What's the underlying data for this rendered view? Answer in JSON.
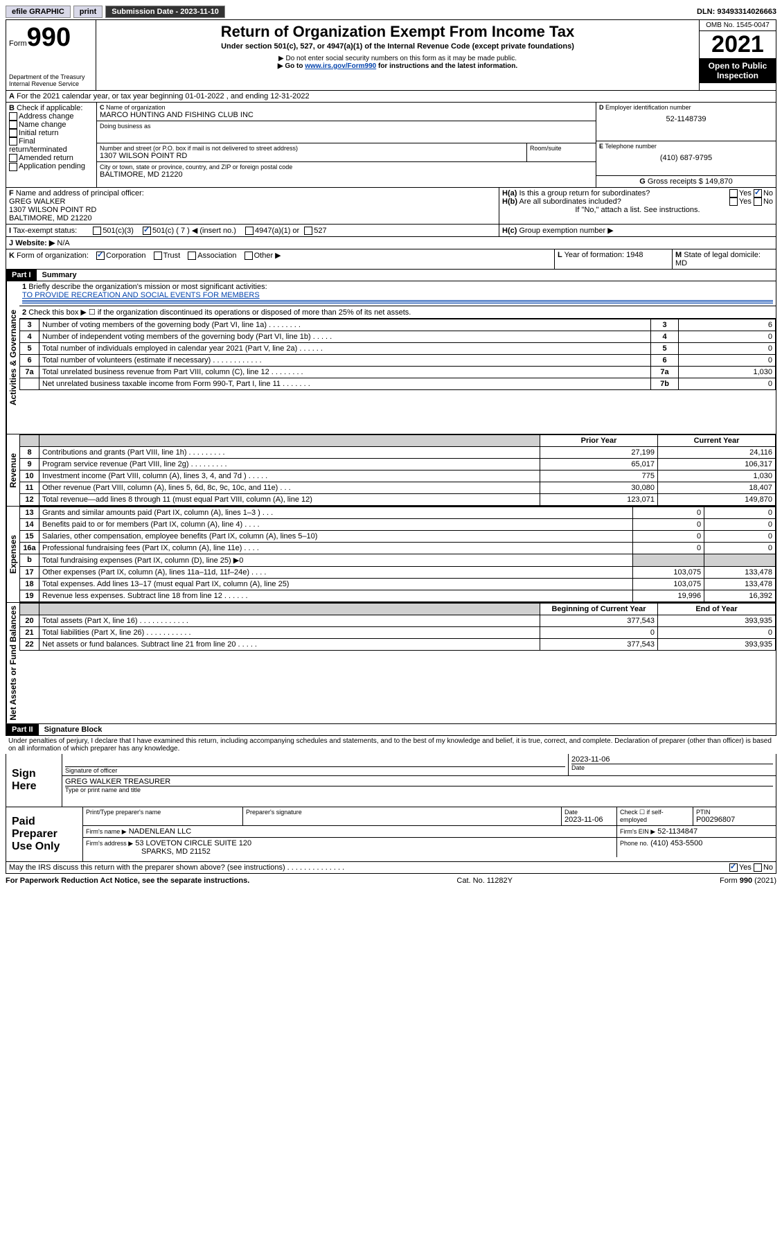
{
  "topbar": {
    "efile": "efile GRAPHIC",
    "print": "print",
    "sub_label": "Submission Date - 2023-11-10",
    "dln": "DLN: 93493314026663"
  },
  "header": {
    "form": "Form",
    "formno": "990",
    "dept": "Department of the Treasury",
    "irs": "Internal Revenue Service",
    "title": "Return of Organization Exempt From Income Tax",
    "subtitle": "Under section 501(c), 527, or 4947(a)(1) of the Internal Revenue Code (except private foundations)",
    "inst1": "▶ Do not enter social security numbers on this form as it may be made public.",
    "inst2_pre": "▶ Go to ",
    "inst2_link": "www.irs.gov/Form990",
    "inst2_post": " for instructions and the latest information.",
    "omb": "OMB No. 1545-0047",
    "year": "2021",
    "open": "Open to Public Inspection"
  },
  "A": {
    "line": "For the 2021 calendar year, or tax year beginning 01-01-2022   , and ending 12-31-2022"
  },
  "B": {
    "label": "Check if applicable:",
    "opts": [
      "Address change",
      "Name change",
      "Initial return",
      "Final return/terminated",
      "Amended return",
      "Application pending"
    ]
  },
  "C": {
    "name_lbl": "Name of organization",
    "name": "MARCO HUNTING AND FISHING CLUB INC",
    "dba_lbl": "Doing business as",
    "street_lbl": "Number and street (or P.O. box if mail is not delivered to street address)",
    "room_lbl": "Room/suite",
    "street": "1307 WILSON POINT RD",
    "city_lbl": "City or town, state or province, country, and ZIP or foreign postal code",
    "city": "BALTIMORE, MD  21220"
  },
  "D": {
    "lbl": "Employer identification number",
    "val": "52-1148739"
  },
  "E": {
    "lbl": "Telephone number",
    "val": "(410) 687-9795"
  },
  "G": {
    "lbl": "Gross receipts $",
    "val": "149,870"
  },
  "F": {
    "lbl": "Name and address of principal officer:",
    "name": "GREG WALKER",
    "addr1": "1307 WILSON POINT RD",
    "addr2": "BALTIMORE, MD  21220"
  },
  "H": {
    "a": "Is this a group return for subordinates?",
    "b": "Are all subordinates included?",
    "note": "If \"No,\" attach a list. See instructions.",
    "c": "Group exemption number ▶",
    "yes": "Yes",
    "no": "No"
  },
  "I": {
    "lbl": "Tax-exempt status:",
    "c3": "501(c)(3)",
    "c": "501(c) ( 7 ) ◀ (insert no.)",
    "a1": "4947(a)(1) or",
    "s527": "527"
  },
  "J": {
    "lbl": "Website: ▶",
    "val": "N/A"
  },
  "K": {
    "lbl": "Form of organization:",
    "opts": [
      "Corporation",
      "Trust",
      "Association",
      "Other ▶"
    ]
  },
  "L": {
    "lbl": "Year of formation:",
    "val": "1948"
  },
  "M": {
    "lbl": "State of legal domicile:",
    "val": "MD"
  },
  "part1": {
    "hdr": "Part I",
    "title": "Summary",
    "q1": "Briefly describe the organization's mission or most significant activities:",
    "mission": "TO PROVIDE RECREATION AND SOCIAL EVENTS FOR MEMBERS",
    "q2": "Check this box ▶ ☐  if the organization discontinued its operations or disposed of more than 25% of its net assets.",
    "sections": {
      "gov": "Activities & Governance",
      "rev": "Revenue",
      "exp": "Expenses",
      "net": "Net Assets or Fund Balances"
    },
    "col_prior": "Prior Year",
    "col_curr": "Current Year",
    "col_beg": "Beginning of Current Year",
    "col_end": "End of Year",
    "lines_gov": [
      {
        "n": "3",
        "d": "Number of voting members of the governing body (Part VI, line 1a)   .    .    .    .    .    .    .    .",
        "box": "3",
        "v": "6"
      },
      {
        "n": "4",
        "d": "Number of independent voting members of the governing body (Part VI, line 1b)   .    .    .    .    .",
        "box": "4",
        "v": "0"
      },
      {
        "n": "5",
        "d": "Total number of individuals employed in calendar year 2021 (Part V, line 2a)   .    .    .    .    .    .",
        "box": "5",
        "v": "0"
      },
      {
        "n": "6",
        "d": "Total number of volunteers (estimate if necessary)   .    .    .    .    .    .    .    .    .    .    .    .",
        "box": "6",
        "v": "0"
      },
      {
        "n": "7a",
        "d": "Total unrelated business revenue from Part VIII, column (C), line 12   .    .    .    .    .    .    .    .",
        "box": "7a",
        "v": "1,030"
      },
      {
        "n": "",
        "d": "Net unrelated business taxable income from Form 990-T, Part I, line 11   .    .    .    .    .    .    .",
        "box": "7b",
        "v": "0"
      }
    ],
    "lines_rev": [
      {
        "n": "8",
        "d": "Contributions and grants (Part VIII, line 1h)   .    .    .    .    .    .    .    .    .",
        "p": "27,199",
        "c": "24,116"
      },
      {
        "n": "9",
        "d": "Program service revenue (Part VIII, line 2g)   .    .    .    .    .    .    .    .    .",
        "p": "65,017",
        "c": "106,317"
      },
      {
        "n": "10",
        "d": "Investment income (Part VIII, column (A), lines 3, 4, and 7d )   .    .    .    .    .",
        "p": "775",
        "c": "1,030"
      },
      {
        "n": "11",
        "d": "Other revenue (Part VIII, column (A), lines 5, 6d, 8c, 9c, 10c, and 11e)   .    .    .",
        "p": "30,080",
        "c": "18,407"
      },
      {
        "n": "12",
        "d": "Total revenue—add lines 8 through 11 (must equal Part VIII, column (A), line 12)",
        "p": "123,071",
        "c": "149,870"
      }
    ],
    "lines_exp": [
      {
        "n": "13",
        "d": "Grants and similar amounts paid (Part IX, column (A), lines 1–3 )   .    .    .",
        "p": "0",
        "c": "0"
      },
      {
        "n": "14",
        "d": "Benefits paid to or for members (Part IX, column (A), line 4)   .    .    .    .",
        "p": "0",
        "c": "0"
      },
      {
        "n": "15",
        "d": "Salaries, other compensation, employee benefits (Part IX, column (A), lines 5–10)",
        "p": "0",
        "c": "0"
      },
      {
        "n": "16a",
        "d": "Professional fundraising fees (Part IX, column (A), line 11e)   .    .    .    .",
        "p": "0",
        "c": "0"
      },
      {
        "n": "b",
        "d": "Total fundraising expenses (Part IX, column (D), line 25) ▶0",
        "p": "",
        "c": "",
        "shade": true
      },
      {
        "n": "17",
        "d": "Other expenses (Part IX, column (A), lines 11a–11d, 11f–24e)   .    .    .    .",
        "p": "103,075",
        "c": "133,478"
      },
      {
        "n": "18",
        "d": "Total expenses. Add lines 13–17 (must equal Part IX, column (A), line 25)",
        "p": "103,075",
        "c": "133,478"
      },
      {
        "n": "19",
        "d": "Revenue less expenses. Subtract line 18 from line 12   .    .    .    .    .    .",
        "p": "19,996",
        "c": "16,392"
      }
    ],
    "lines_net": [
      {
        "n": "20",
        "d": "Total assets (Part X, line 16)   .    .    .    .    .    .    .    .    .    .    .    .",
        "p": "377,543",
        "c": "393,935"
      },
      {
        "n": "21",
        "d": "Total liabilities (Part X, line 26)   .    .    .    .    .    .    .    .    .    .    .",
        "p": "0",
        "c": "0"
      },
      {
        "n": "22",
        "d": "Net assets or fund balances. Subtract line 21 from line 20   .    .    .    .    .",
        "p": "377,543",
        "c": "393,935"
      }
    ]
  },
  "part2": {
    "hdr": "Part II",
    "title": "Signature Block",
    "decl": "Under penalties of perjury, I declare that I have examined this return, including accompanying schedules and statements, and to the best of my knowledge and belief, it is true, correct, and complete. Declaration of preparer (other than officer) is based on all information of which preparer has any knowledge.",
    "sign_here": "Sign Here",
    "sig_officer": "Signature of officer",
    "date": "Date",
    "sig_date": "2023-11-06",
    "officer": "GREG WALKER  TREASURER",
    "type_name": "Type or print name and title",
    "paid": "Paid Preparer Use Only",
    "prep_name_lbl": "Print/Type preparer's name",
    "prep_sig_lbl": "Preparer's signature",
    "prep_date_lbl": "Date",
    "prep_date": "2023-11-06",
    "check_self": "Check ☐ if self-employed",
    "ptin_lbl": "PTIN",
    "ptin": "P00296807",
    "firm_name_lbl": "Firm's name    ▶",
    "firm_name": "NADENLEAN LLC",
    "firm_ein_lbl": "Firm's EIN ▶",
    "firm_ein": "52-1134847",
    "firm_addr_lbl": "Firm's address ▶",
    "firm_addr1": "53 LOVETON CIRCLE SUITE 120",
    "firm_addr2": "SPARKS, MD  21152",
    "phone_lbl": "Phone no.",
    "phone": "(410) 453-5500",
    "discuss": "May the IRS discuss this return with the preparer shown above? (see instructions)   .    .    .    .    .    .    .    .    .    .    .    .    .    .",
    "yes": "Yes",
    "no": "No"
  },
  "footer": {
    "pra": "For Paperwork Reduction Act Notice, see the separate instructions.",
    "cat": "Cat. No. 11282Y",
    "form": "Form 990 (2021)"
  }
}
